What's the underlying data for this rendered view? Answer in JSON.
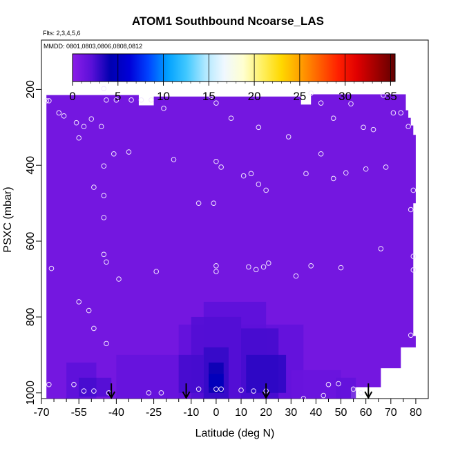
{
  "chart_data": {
    "type": "heatmap",
    "title": "ATOM1 Southbound Ncoarse_LAS",
    "flights_label": "Flts: 2,3,4,5,6",
    "dates_label": "MMDD: 0801,0803,0806,0808,0812",
    "xlabel": "Latitude (deg N)",
    "ylabel": "PSXC (mbar)",
    "xlim": [
      -70,
      85
    ],
    "ylim": [
      1015,
      70
    ],
    "x_ticks": [
      -70,
      -55,
      -40,
      -25,
      -10,
      0,
      10,
      20,
      30,
      40,
      50,
      60,
      70,
      80
    ],
    "x_minor_ticks": [
      -65,
      -60,
      -50,
      -45,
      -35,
      -30,
      -20,
      -15,
      -5,
      5,
      15,
      25,
      35,
      45,
      55,
      65,
      75
    ],
    "y_ticks": [
      200,
      400,
      600,
      800,
      1000
    ],
    "colorbar": {
      "min": 0,
      "max": 35.5,
      "ticks": [
        0,
        5,
        10,
        15,
        20,
        25,
        30,
        35
      ],
      "colors": [
        "#8b1de8",
        "#5a10d8",
        "#0000b0",
        "#0000d8",
        "#0044ff",
        "#00a0ff",
        "#40c8ff",
        "#b0e8ff",
        "#f0f8ff",
        "#ffffd0",
        "#fff060",
        "#ffd800",
        "#ffa000",
        "#ff6000",
        "#ff2000",
        "#e00000",
        "#a00000",
        "#600000"
      ]
    },
    "background_value": 1,
    "domain_boundary": [
      [
        -68,
        215
      ],
      [
        -31,
        215
      ],
      [
        -31,
        242
      ],
      [
        -25,
        242
      ],
      [
        -25,
        219
      ],
      [
        34,
        219
      ],
      [
        34,
        240
      ],
      [
        38,
        240
      ],
      [
        38,
        213
      ],
      [
        76,
        213
      ],
      [
        76,
        255
      ],
      [
        77,
        255
      ],
      [
        77,
        275
      ],
      [
        78,
        275
      ],
      [
        78,
        295
      ],
      [
        79,
        295
      ],
      [
        79,
        320
      ],
      [
        79,
        320
      ],
      [
        80,
        320
      ],
      [
        80,
        500
      ],
      [
        79,
        500
      ],
      [
        79,
        850
      ],
      [
        80,
        850
      ],
      [
        80,
        880
      ],
      [
        74,
        880
      ],
      [
        74,
        935
      ],
      [
        66,
        935
      ],
      [
        66,
        985
      ],
      [
        54,
        985
      ],
      [
        54,
        1015
      ],
      [
        -68,
        1015
      ]
    ],
    "enhanced_cells": [
      {
        "lat": [
          -40,
          25
        ],
        "p": [
          900,
          1015
        ],
        "v": 1.6
      },
      {
        "lat": [
          -15,
          35
        ],
        "p": [
          820,
          1015
        ],
        "v": 1.8
      },
      {
        "lat": [
          -5,
          20
        ],
        "p": [
          760,
          1015
        ],
        "v": 2.0
      },
      {
        "lat": [
          -10,
          10
        ],
        "p": [
          800,
          1015
        ],
        "v": 2.3
      },
      {
        "lat": [
          10,
          25
        ],
        "p": [
          830,
          1015
        ],
        "v": 2.6
      },
      {
        "lat": [
          -5,
          5
        ],
        "p": [
          880,
          1015
        ],
        "v": 3.0
      },
      {
        "lat": [
          -3,
          3
        ],
        "p": [
          920,
          1000
        ],
        "v": 4.0
      },
      {
        "lat": [
          -3,
          3
        ],
        "p": [
          950,
          985
        ],
        "v": 4.8
      },
      {
        "lat": [
          12,
          28
        ],
        "p": [
          900,
          1000
        ],
        "v": 3.2
      },
      {
        "lat": [
          -15,
          -5
        ],
        "p": [
          900,
          1000
        ],
        "v": 2.6
      },
      {
        "lat": [
          -60,
          -48
        ],
        "p": [
          920,
          1015
        ],
        "v": 2.0
      },
      {
        "lat": [
          -55,
          -48
        ],
        "p": [
          960,
          1010
        ],
        "v": 2.6
      },
      {
        "lat": [
          -48,
          -42
        ],
        "p": [
          960,
          1010
        ],
        "v": 2.3
      },
      {
        "lat": [
          30,
          50
        ],
        "p": [
          940,
          1015
        ],
        "v": 1.5
      },
      {
        "lat": [
          48,
          56
        ],
        "p": [
          960,
          1015
        ],
        "v": 1.8
      }
    ],
    "samples": [
      [
        -68,
        230
      ],
      [
        -67,
        230
      ],
      [
        -63,
        262
      ],
      [
        -61,
        270
      ],
      [
        -56,
        288
      ],
      [
        -53,
        298
      ],
      [
        -55,
        328
      ],
      [
        -50,
        278
      ],
      [
        -45,
        198
      ],
      [
        -44,
        228
      ],
      [
        -40,
        228
      ],
      [
        -34,
        228
      ],
      [
        -30,
        228
      ],
      [
        -26,
        228
      ],
      [
        -46,
        298
      ],
      [
        -41,
        370
      ],
      [
        -35,
        365
      ],
      [
        -45,
        402
      ],
      [
        -49,
        458
      ],
      [
        -45,
        480
      ],
      [
        -45,
        538
      ],
      [
        -21,
        250
      ],
      [
        -17,
        385
      ],
      [
        -7,
        500
      ],
      [
        -1,
        500
      ],
      [
        -2,
        218
      ],
      [
        0,
        236
      ],
      [
        6,
        276
      ],
      [
        17,
        300
      ],
      [
        29,
        325
      ],
      [
        38,
        210
      ],
      [
        42,
        236
      ],
      [
        47,
        276
      ],
      [
        54,
        238
      ],
      [
        59,
        300
      ],
      [
        63,
        306
      ],
      [
        67,
        215
      ],
      [
        71,
        262
      ],
      [
        74,
        262
      ],
      [
        77,
        298
      ],
      [
        0,
        390
      ],
      [
        2,
        405
      ],
      [
        11,
        428
      ],
      [
        14,
        422
      ],
      [
        17,
        450
      ],
      [
        20,
        466
      ],
      [
        36,
        422
      ],
      [
        42,
        370
      ],
      [
        47,
        435
      ],
      [
        52,
        420
      ],
      [
        60,
        410
      ],
      [
        68,
        405
      ],
      [
        79,
        466
      ],
      [
        78,
        517
      ],
      [
        -66,
        672
      ],
      [
        -45,
        635
      ],
      [
        -44,
        655
      ],
      [
        -39,
        700
      ],
      [
        -24,
        680
      ],
      [
        0,
        665
      ],
      [
        0,
        680
      ],
      [
        13,
        668
      ],
      [
        16,
        675
      ],
      [
        19,
        668
      ],
      [
        21,
        658
      ],
      [
        32,
        692
      ],
      [
        38,
        665
      ],
      [
        50,
        670
      ],
      [
        66,
        620
      ],
      [
        79,
        640
      ],
      [
        79,
        676
      ],
      [
        78,
        848
      ],
      [
        -55,
        760
      ],
      [
        -51,
        783
      ],
      [
        -49,
        830
      ],
      [
        -44,
        870
      ],
      [
        -57,
        978
      ],
      [
        -53,
        995
      ],
      [
        -49,
        995
      ],
      [
        -43,
        1000
      ],
      [
        -22,
        1000
      ],
      [
        -7,
        990
      ],
      [
        0,
        990
      ],
      [
        2,
        990
      ],
      [
        10,
        993
      ],
      [
        15,
        995
      ],
      [
        20,
        995
      ],
      [
        35,
        1015
      ],
      [
        43,
        1007
      ],
      [
        45,
        978
      ],
      [
        49,
        976
      ],
      [
        55,
        990
      ],
      [
        -67,
        978
      ],
      [
        -27,
        1000
      ],
      [
        58,
        1000
      ]
    ],
    "arrows_lat": [
      -42,
      -12,
      20,
      61
    ]
  }
}
